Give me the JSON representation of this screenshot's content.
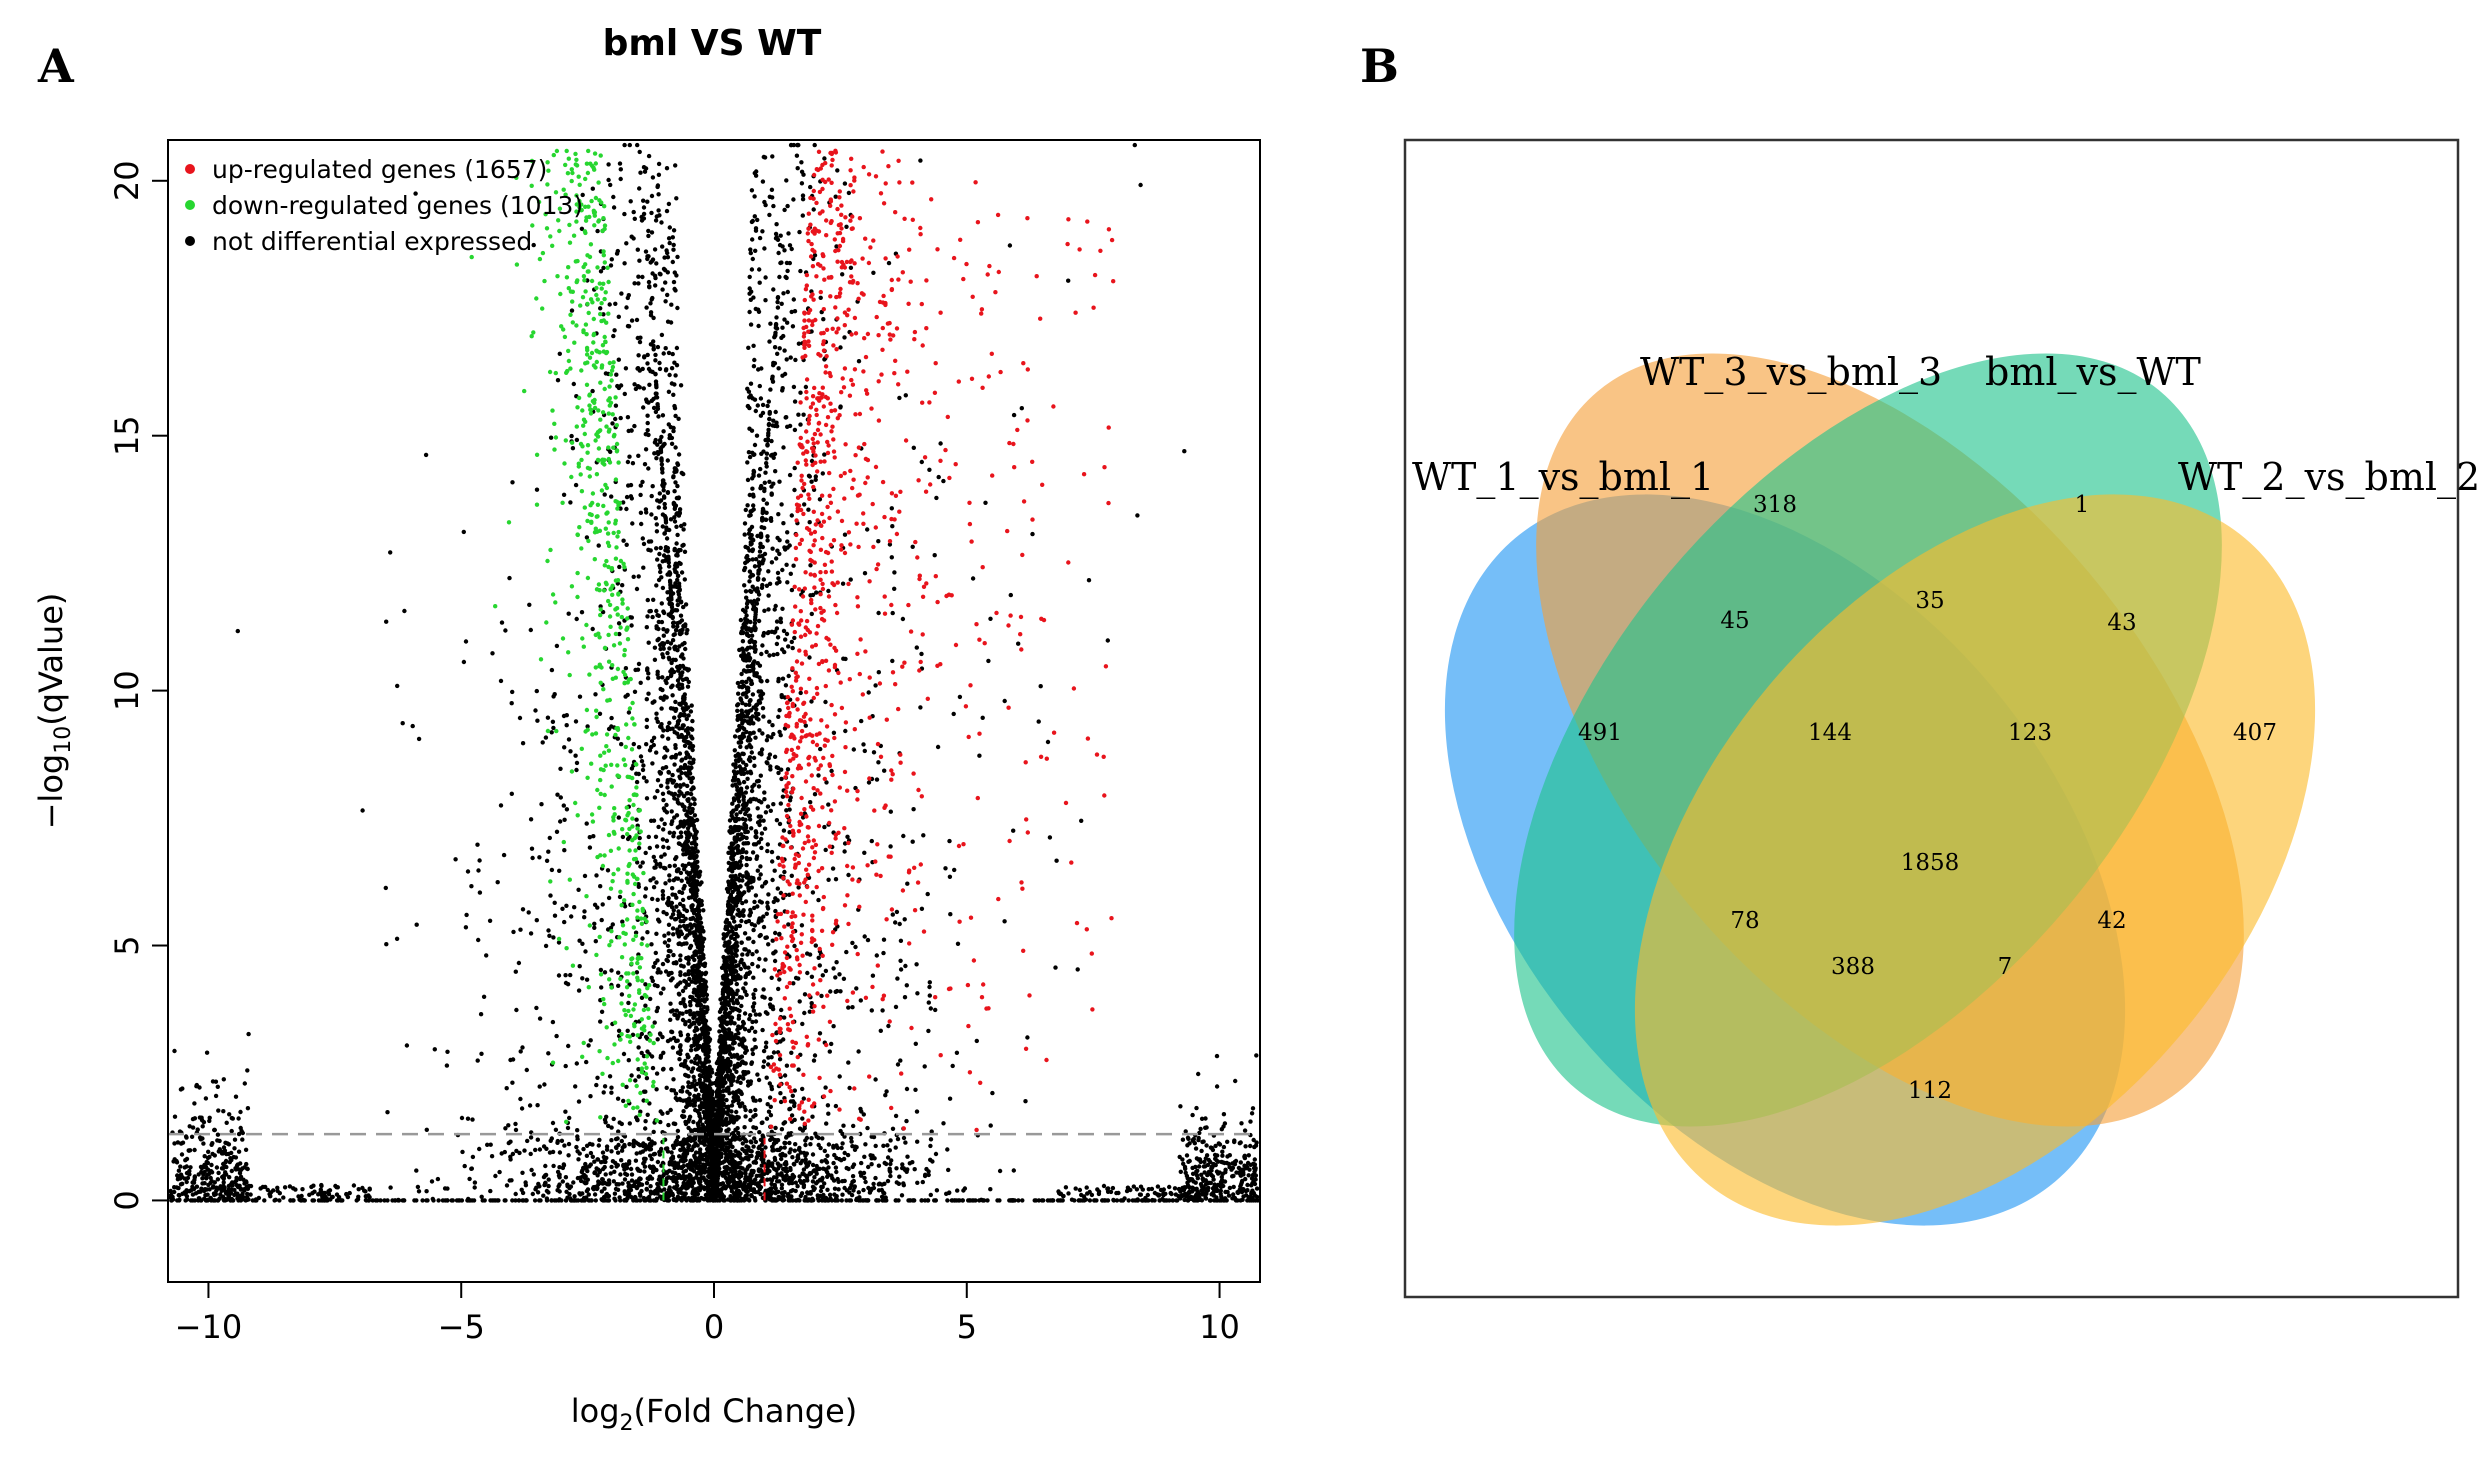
{
  "panels": {
    "a": "A",
    "b": "B"
  },
  "chart_data": [
    {
      "type": "scatter",
      "title": "bml VS WT",
      "xlabel": "log2(Fold Change)",
      "ylabel": "−log10(qValue)",
      "xlim": [
        -10.8,
        10.8
      ],
      "ylim": [
        -1.6,
        20.8
      ],
      "xticks": [
        -10,
        -5,
        0,
        5,
        10
      ],
      "yticks": [
        0,
        5,
        10,
        15,
        20
      ],
      "xtick_labels": [
        "−10",
        "−5",
        "0",
        "5",
        "10"
      ],
      "ytick_labels": [
        "0",
        "5",
        "10",
        "15",
        "20"
      ],
      "threshold_q": 1.3,
      "fold_thresholds": [
        -1,
        1
      ],
      "series": [
        {
          "name": "up-regulated genes (1657)",
          "color": "#e8141c",
          "count": 1657
        },
        {
          "name": "down-regulated genes (1013)",
          "color": "#27d630",
          "count": 1013
        },
        {
          "name": "not differential expressed",
          "color": "#000000"
        }
      ],
      "legend_position": "top-left"
    },
    {
      "type": "venn",
      "sets": [
        {
          "name": "WT_1_vs_bml_1",
          "color": "#2196f3"
        },
        {
          "name": "WT_3_vs_bml_3",
          "color": "#f5a03a"
        },
        {
          "name": "bml_vs_WT",
          "color": "#20c48c"
        },
        {
          "name": "WT_2_vs_bml_2",
          "color": "#fbbc2c"
        }
      ],
      "regions": [
        {
          "id": "only_WT1",
          "value": "491"
        },
        {
          "id": "only_WT3",
          "value": "318"
        },
        {
          "id": "only_bml_WT",
          "value": "1"
        },
        {
          "id": "only_WT2",
          "value": "407"
        },
        {
          "id": "WT1_WT3",
          "value": "45"
        },
        {
          "id": "WT3_bmlWT",
          "value": "35"
        },
        {
          "id": "bmlWT_WT2",
          "value": "43"
        },
        {
          "id": "WT1_WT3_bmlWT",
          "value": "144"
        },
        {
          "id": "WT3_bmlWT_WT2",
          "value": "123"
        },
        {
          "id": "all_four",
          "value": "1858"
        },
        {
          "id": "WT1_bmlWT",
          "value": "78"
        },
        {
          "id": "WT3_WT2",
          "value": "42"
        },
        {
          "id": "WT1_bmlWT_WT2",
          "value": "388"
        },
        {
          "id": "WT1_WT3_WT2",
          "value": "7"
        },
        {
          "id": "WT1_WT2",
          "value": "112"
        }
      ]
    }
  ]
}
